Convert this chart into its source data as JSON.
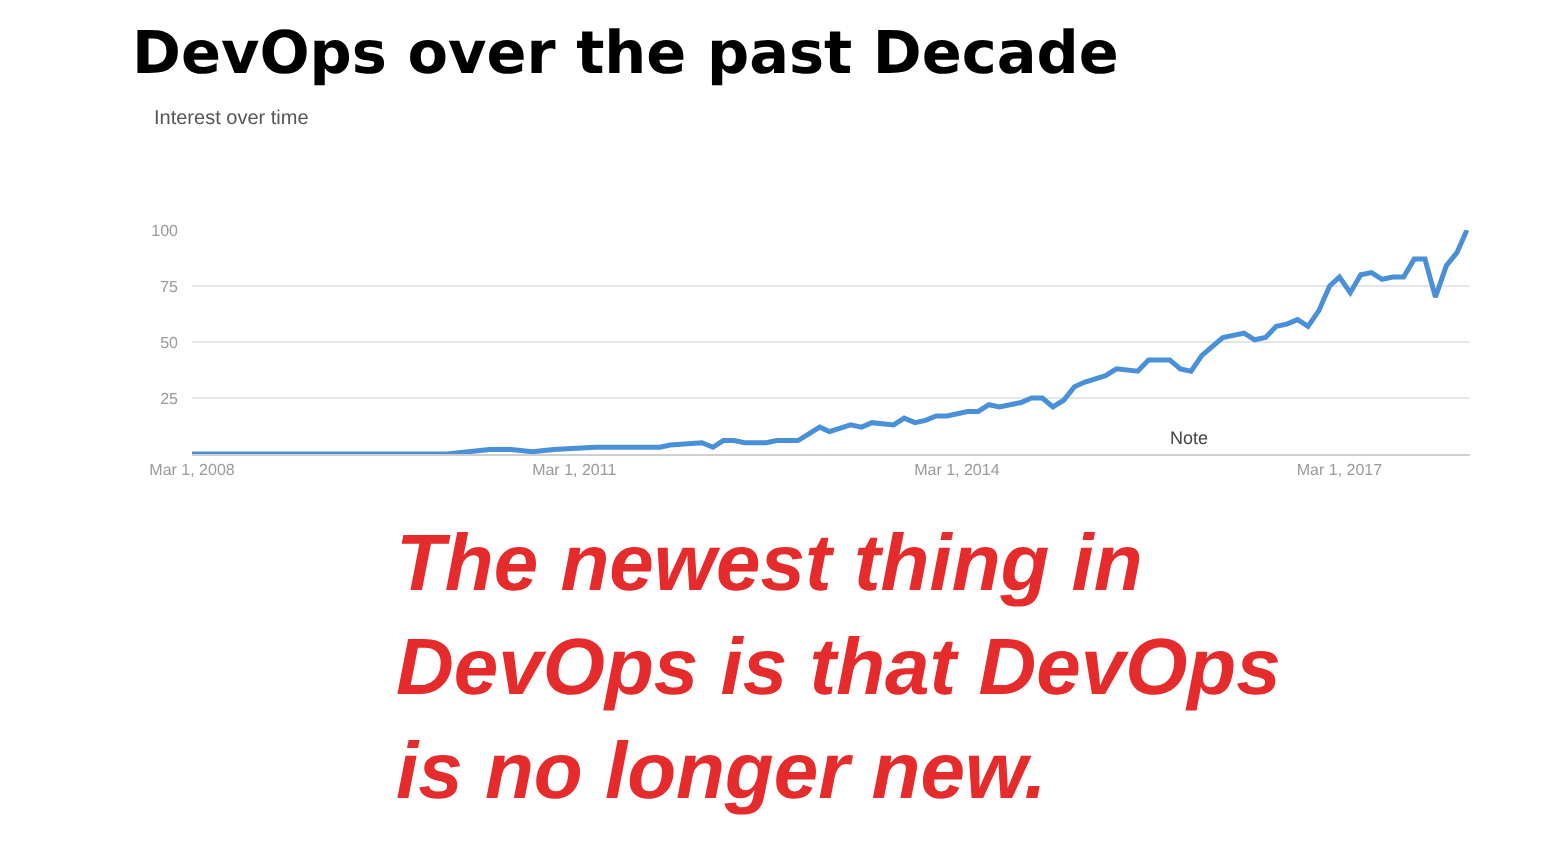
{
  "chart_data": {
    "type": "line",
    "title": "DevOps over the past Decade",
    "subtitle": "Interest over time",
    "x": [
      "2008-03",
      "2009-03",
      "2010-03",
      "2010-07",
      "2010-09",
      "2010-11",
      "2011-01",
      "2011-05",
      "2011-09",
      "2011-11",
      "2011-12",
      "2012-03",
      "2012-04",
      "2012-05",
      "2012-06",
      "2012-07",
      "2012-09",
      "2012-10",
      "2012-12",
      "2013-01",
      "2013-02",
      "2013-03",
      "2013-05",
      "2013-06",
      "2013-07",
      "2013-09",
      "2013-10",
      "2013-11",
      "2013-12",
      "2014-01",
      "2014-02",
      "2014-04",
      "2014-05",
      "2014-06",
      "2014-07",
      "2014-09",
      "2014-10",
      "2014-11",
      "2014-12",
      "2015-01",
      "2015-02",
      "2015-03",
      "2015-05",
      "2015-06",
      "2015-08",
      "2015-09",
      "2015-11",
      "2015-12",
      "2016-01",
      "2016-02",
      "2016-04",
      "2016-06",
      "2016-07",
      "2016-08",
      "2016-09",
      "2016-10",
      "2016-11",
      "2016-12",
      "2017-01",
      "2017-02",
      "2017-03",
      "2017-04",
      "2017-05",
      "2017-06",
      "2017-07",
      "2017-08",
      "2017-09",
      "2017-10",
      "2017-11",
      "2017-12",
      "2018-01",
      "2018-02",
      "2018-03"
    ],
    "series": [
      {
        "color": "#4a90d9",
        "values": [
          0,
          0,
          0,
          2,
          2,
          1,
          2,
          3,
          3,
          3,
          4,
          5,
          3,
          6,
          6,
          5,
          5,
          6,
          6,
          9,
          12,
          10,
          13,
          12,
          14,
          13,
          16,
          14,
          15,
          17,
          17,
          19,
          19,
          22,
          21,
          23,
          25,
          25,
          21,
          24,
          30,
          32,
          35,
          38,
          37,
          42,
          42,
          38,
          37,
          44,
          52,
          54,
          51,
          52,
          57,
          58,
          60,
          57,
          64,
          75,
          79,
          72,
          80,
          81,
          78,
          79,
          79,
          87,
          87,
          70,
          84,
          90,
          100
        ]
      }
    ],
    "xlim": [
      "2008-03-01",
      "2018-03-10"
    ],
    "xticks": [
      {
        "value": "2008-03-01",
        "label": "Mar 1, 2008"
      },
      {
        "value": "2011-03-01",
        "label": "Mar 1, 2011"
      },
      {
        "value": "2014-03-01",
        "label": "Mar 1, 2014"
      },
      {
        "value": "2017-03-01",
        "label": "Mar 1, 2017"
      }
    ],
    "ylim": [
      0,
      100
    ],
    "yticks": [
      {
        "value": 0,
        "label": null
      },
      25,
      50,
      75,
      100
    ],
    "grid": "y",
    "marker": "none",
    "line_style": "solid",
    "annotations": [
      "Note",
      "The newest thing in\nDevOps is that DevOps\nis no longer new."
    ]
  }
}
